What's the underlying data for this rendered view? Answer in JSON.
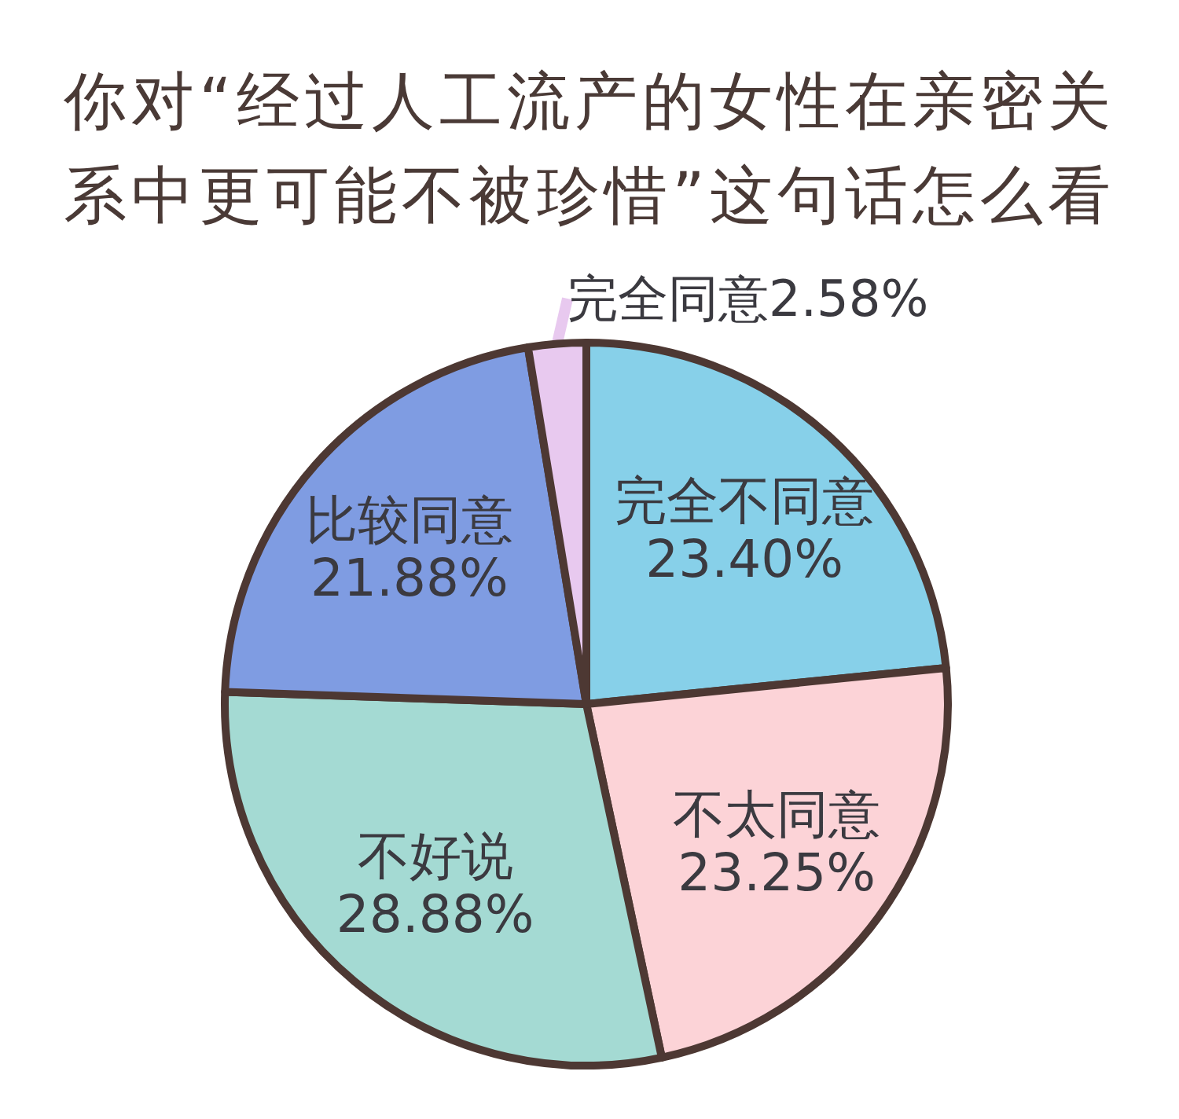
{
  "chart_data": {
    "type": "pie",
    "title": "你对“经过人工流产的女性在亲密关系中更可能不被珍惜”这句话怎么看",
    "categories": [
      "完全不同意",
      "不太同意",
      "不好说",
      "比较同意",
      "完全同意"
    ],
    "values": [
      23.4,
      23.25,
      28.88,
      21.88,
      2.58
    ],
    "value_labels": [
      "23.40%",
      "23.25%",
      "28.88%",
      "21.88%",
      "2.58%"
    ],
    "colors": [
      "#87d0e9",
      "#fcd3d7",
      "#a4dad3",
      "#7f9ce2",
      "#e8c9ef"
    ]
  }
}
